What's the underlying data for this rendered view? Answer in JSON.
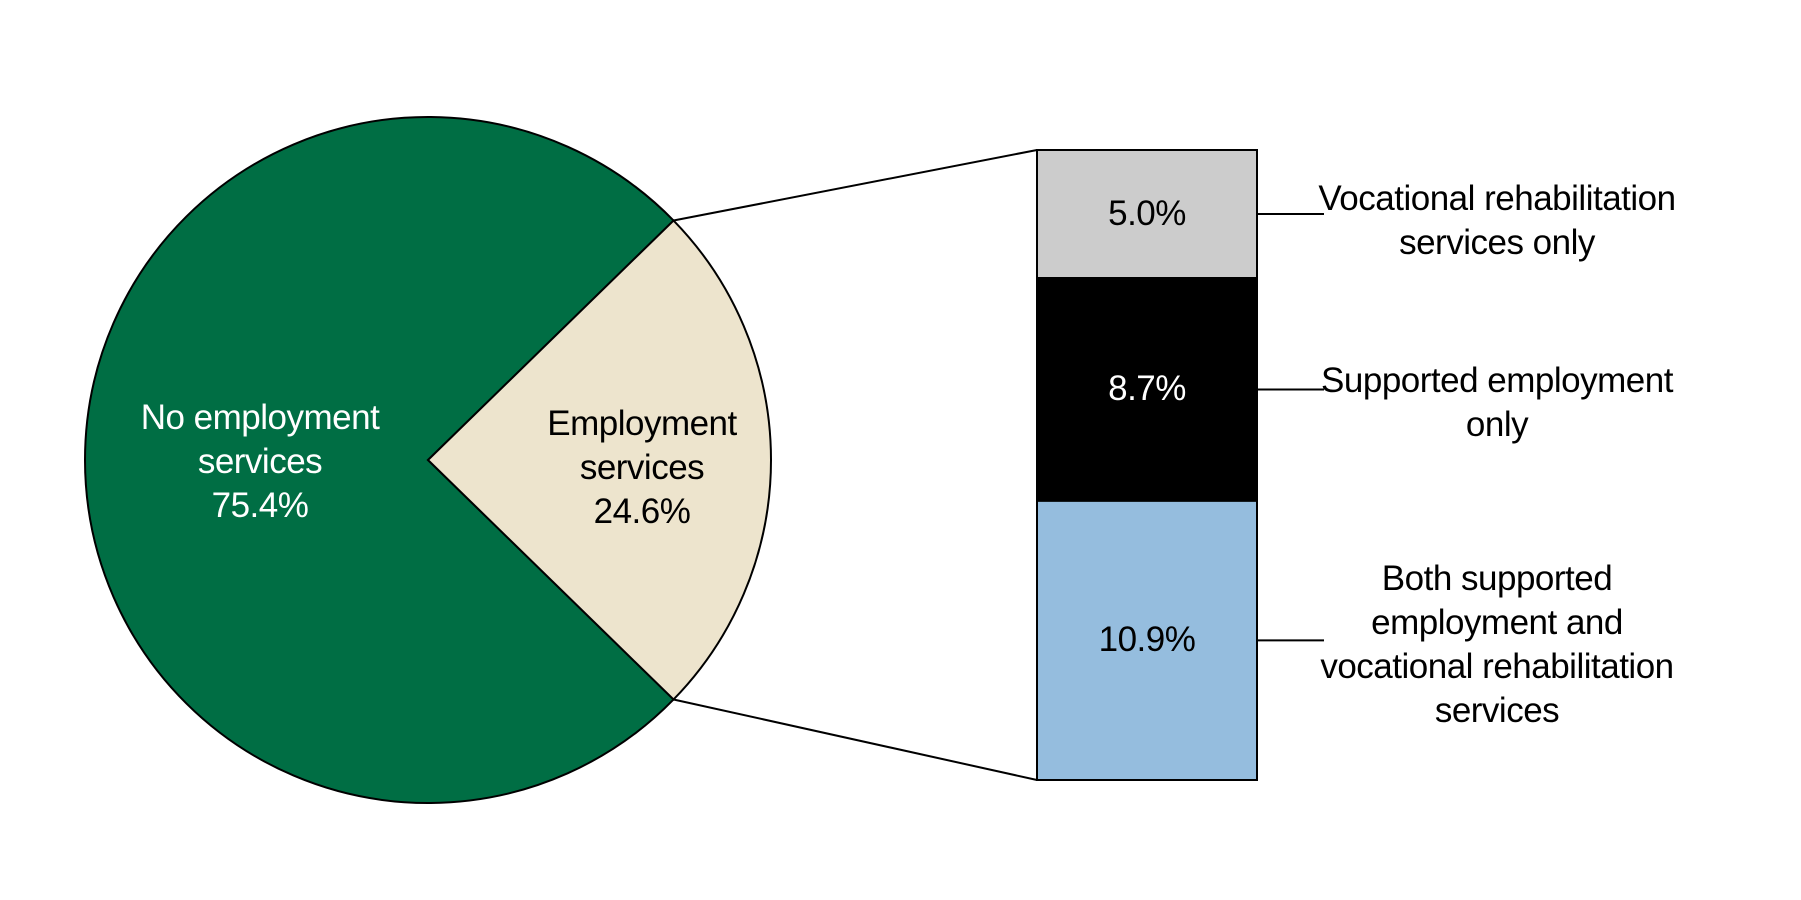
{
  "figure": {
    "background_color": "#FFFFFF",
    "outline_color": "#000000"
  },
  "chart_data": {
    "type": "pie",
    "subtype": "pie-with-breakdown-bar",
    "title": "",
    "legend_position": "none",
    "grid": false,
    "slices": [
      {
        "name": "No employment services",
        "value_pct": 75.4,
        "display_text": "No employment\nservices\n75.4%",
        "color": "#006E44",
        "text_color": "#FFFFFF"
      },
      {
        "name": "Employment services",
        "value_pct": 24.6,
        "display_text": "Employment\nservices\n24.6%",
        "color": "#EDE4CD",
        "text_color": "#000000"
      }
    ],
    "breakdown": {
      "of_slice": "Employment services",
      "segments": [
        {
          "name": "Vocational rehabilitation services only",
          "value_pct": 5.0,
          "value_display": "5.0%",
          "label_display": "Vocational rehabilitation\nservices only",
          "color": "#CCCCCC",
          "value_text_color": "#000000",
          "label_text_color": "#000000"
        },
        {
          "name": "Supported employment only",
          "value_pct": 8.7,
          "value_display": "8.7%",
          "label_display": "Supported employment\nonly",
          "color": "#000000",
          "value_text_color": "#FFFFFF",
          "label_text_color": "#000000"
        },
        {
          "name": "Both supported employment and vocational rehabilitation services",
          "value_pct": 10.9,
          "value_display": "10.9%",
          "label_display": "Both supported\nemployment and\nvocational rehabilitation\nservices",
          "color": "#95BDDE",
          "value_text_color": "#000000",
          "label_text_color": "#000000"
        }
      ]
    }
  }
}
